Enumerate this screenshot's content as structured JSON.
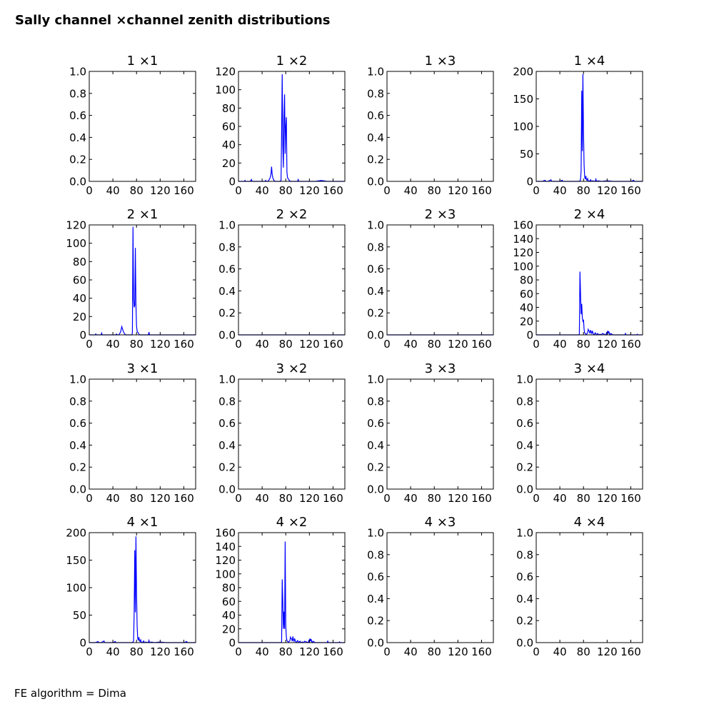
{
  "title": "Sally channel ×channel zenith distributions",
  "footer": "FE algorithm = Dima",
  "colors": {
    "line": "#0000ff",
    "axes": "#000000",
    "background": "#ffffff"
  },
  "chart_data": [
    {
      "type": "line",
      "title": "1 ×1",
      "xlim": [
        0,
        180
      ],
      "ylim": [
        0,
        1.0
      ],
      "xticks": [
        "0",
        "40",
        "80",
        "120",
        "160"
      ],
      "yticks": [
        "0.0",
        "0.2",
        "0.4",
        "0.6",
        "0.8",
        "1.0"
      ],
      "series": []
    },
    {
      "type": "line",
      "title": "1 ×2",
      "xlim": [
        0,
        180
      ],
      "ylim": [
        0,
        120
      ],
      "xticks": [
        "0",
        "40",
        "80",
        "120",
        "160"
      ],
      "yticks": [
        "0",
        "20",
        "40",
        "60",
        "80",
        "100",
        "120"
      ],
      "series": [
        {
          "x": [
            0,
            10,
            11,
            12,
            20,
            22,
            23,
            24,
            30,
            40,
            45,
            46,
            47,
            50,
            52,
            53,
            54,
            55,
            56,
            57,
            58,
            60,
            62,
            66,
            68,
            70,
            72,
            73,
            74,
            75,
            76,
            77,
            78,
            79,
            80,
            81,
            82,
            83,
            84,
            85,
            86,
            88,
            90,
            95,
            100,
            101,
            102,
            110,
            130,
            140,
            150,
            160,
            180
          ],
          "y": [
            0,
            0,
            1,
            0,
            0,
            2,
            0,
            0,
            0,
            0,
            0,
            1,
            0,
            0,
            2,
            3,
            5,
            8,
            16,
            8,
            4,
            1,
            0,
            0,
            0,
            0,
            1,
            53,
            117,
            40,
            15,
            70,
            95,
            30,
            60,
            70,
            10,
            4,
            3,
            2,
            1,
            0,
            0,
            0,
            0,
            2,
            0,
            0,
            0,
            1,
            0,
            0,
            0
          ]
        }
      ]
    },
    {
      "type": "line",
      "title": "1 ×3",
      "xlim": [
        0,
        180
      ],
      "ylim": [
        0,
        1.0
      ],
      "xticks": [
        "0",
        "40",
        "80",
        "120",
        "160"
      ],
      "yticks": [
        "0.0",
        "0.2",
        "0.4",
        "0.6",
        "0.8",
        "1.0"
      ],
      "series": []
    },
    {
      "type": "line",
      "title": "1 ×4",
      "xlim": [
        0,
        180
      ],
      "ylim": [
        0,
        200
      ],
      "xticks": [
        "0",
        "40",
        "80",
        "120",
        "160"
      ],
      "yticks": [
        "0",
        "50",
        "100",
        "150",
        "200"
      ],
      "series": [
        {
          "x": [
            0,
            10,
            15,
            16,
            20,
            25,
            26,
            30,
            40,
            44,
            45,
            50,
            60,
            70,
            72,
            74,
            75,
            76,
            77,
            78,
            79,
            80,
            81,
            82,
            83,
            84,
            85,
            86,
            87,
            88,
            90,
            92,
            93,
            95,
            100,
            101,
            102,
            105,
            110,
            120,
            130,
            140,
            150,
            160,
            165,
            166,
            170,
            180
          ],
          "y": [
            0,
            0,
            2,
            0,
            0,
            3,
            0,
            0,
            0,
            2,
            0,
            0,
            0,
            0,
            0,
            1,
            3,
            20,
            165,
            55,
            195,
            90,
            30,
            8,
            4,
            10,
            3,
            2,
            5,
            1,
            0,
            3,
            0,
            1,
            0,
            4,
            0,
            1,
            0,
            1,
            0,
            0,
            0,
            0,
            2,
            0,
            0,
            0
          ]
        }
      ]
    },
    {
      "type": "line",
      "title": "2 ×1",
      "xlim": [
        0,
        180
      ],
      "ylim": [
        0,
        120
      ],
      "xticks": [
        "0",
        "40",
        "80",
        "120",
        "160"
      ],
      "yticks": [
        "0",
        "20",
        "40",
        "60",
        "80",
        "100",
        "120"
      ],
      "series": [
        {
          "x": [
            0,
            10,
            11,
            12,
            20,
            21,
            22,
            30,
            40,
            45,
            46,
            47,
            50,
            52,
            53,
            54,
            55,
            56,
            57,
            58,
            60,
            62,
            66,
            70,
            72,
            73,
            74,
            75,
            76,
            77,
            78,
            79,
            80,
            81,
            82,
            83,
            84,
            85,
            86,
            88,
            90,
            95,
            100,
            101,
            102,
            110,
            130,
            150,
            180
          ],
          "y": [
            0,
            0,
            1,
            0,
            0,
            2,
            0,
            0,
            0,
            0,
            1,
            0,
            0,
            2,
            3,
            6,
            9,
            7,
            5,
            3,
            1,
            0,
            0,
            0,
            0,
            2,
            118,
            40,
            30,
            32,
            95,
            33,
            10,
            4,
            3,
            2,
            1,
            0,
            0,
            0,
            0,
            0,
            0,
            3,
            0,
            0,
            0,
            0,
            0
          ]
        }
      ]
    },
    {
      "type": "line",
      "title": "2 ×2",
      "xlim": [
        0,
        180
      ],
      "ylim": [
        0,
        1.0
      ],
      "xticks": [
        "0",
        "40",
        "80",
        "120",
        "160"
      ],
      "yticks": [
        "0.0",
        "0.2",
        "0.4",
        "0.6",
        "0.8",
        "1.0"
      ],
      "series": [
        {
          "x": [
            0,
            180
          ],
          "y": [
            0,
            0
          ]
        }
      ]
    },
    {
      "type": "line",
      "title": "2 ×3",
      "xlim": [
        0,
        180
      ],
      "ylim": [
        0,
        1.0
      ],
      "xticks": [
        "0",
        "40",
        "80",
        "120",
        "160"
      ],
      "yticks": [
        "0.0",
        "0.2",
        "0.4",
        "0.6",
        "0.8",
        "1.0"
      ],
      "series": [
        {
          "x": [
            0,
            180
          ],
          "y": [
            0,
            0
          ]
        }
      ]
    },
    {
      "type": "line",
      "title": "2 ×4",
      "xlim": [
        0,
        180
      ],
      "ylim": [
        0,
        160
      ],
      "xticks": [
        "0",
        "40",
        "80",
        "120",
        "160"
      ],
      "yticks": [
        "0",
        "20",
        "40",
        "60",
        "80",
        "100",
        "120",
        "140",
        "160"
      ],
      "series": [
        {
          "x": [
            0,
            50,
            60,
            70,
            72,
            73,
            74,
            75,
            76,
            77,
            78,
            79,
            80,
            81,
            82,
            83,
            84,
            85,
            86,
            87,
            88,
            89,
            90,
            91,
            92,
            93,
            94,
            95,
            96,
            97,
            98,
            100,
            102,
            104,
            106,
            108,
            110,
            112,
            118,
            119,
            120,
            121,
            122,
            123,
            124,
            125,
            126,
            130,
            140,
            150,
            151,
            152,
            160,
            170,
            171,
            172,
            180
          ],
          "y": [
            0,
            0,
            0,
            0,
            0,
            1,
            92,
            60,
            30,
            45,
            25,
            20,
            22,
            8,
            3,
            2,
            1,
            1,
            2,
            3,
            8,
            6,
            5,
            2,
            7,
            4,
            2,
            6,
            3,
            1,
            0,
            3,
            0,
            2,
            0,
            1,
            0,
            2,
            0,
            3,
            1,
            6,
            2,
            5,
            1,
            0,
            2,
            0,
            0,
            0,
            2,
            0,
            0,
            0,
            1,
            0,
            0
          ]
        }
      ]
    },
    {
      "type": "line",
      "title": "3 ×1",
      "xlim": [
        0,
        180
      ],
      "ylim": [
        0,
        1.0
      ],
      "xticks": [
        "0",
        "40",
        "80",
        "120",
        "160"
      ],
      "yticks": [
        "0.0",
        "0.2",
        "0.4",
        "0.6",
        "0.8",
        "1.0"
      ],
      "series": []
    },
    {
      "type": "line",
      "title": "3 ×2",
      "xlim": [
        0,
        180
      ],
      "ylim": [
        0,
        1.0
      ],
      "xticks": [
        "0",
        "40",
        "80",
        "120",
        "160"
      ],
      "yticks": [
        "0.0",
        "0.2",
        "0.4",
        "0.6",
        "0.8",
        "1.0"
      ],
      "series": []
    },
    {
      "type": "line",
      "title": "3 ×3",
      "xlim": [
        0,
        180
      ],
      "ylim": [
        0,
        1.0
      ],
      "xticks": [
        "0",
        "40",
        "80",
        "120",
        "160"
      ],
      "yticks": [
        "0.0",
        "0.2",
        "0.4",
        "0.6",
        "0.8",
        "1.0"
      ],
      "series": []
    },
    {
      "type": "line",
      "title": "3 ×4",
      "xlim": [
        0,
        180
      ],
      "ylim": [
        0,
        1.0
      ],
      "xticks": [
        "0",
        "40",
        "80",
        "120",
        "160"
      ],
      "yticks": [
        "0.0",
        "0.2",
        "0.4",
        "0.6",
        "0.8",
        "1.0"
      ],
      "series": []
    },
    {
      "type": "line",
      "title": "4 ×1",
      "xlim": [
        0,
        180
      ],
      "ylim": [
        0,
        200
      ],
      "xticks": [
        "0",
        "40",
        "80",
        "120",
        "160"
      ],
      "yticks": [
        "0",
        "50",
        "100",
        "150",
        "200"
      ],
      "series": [
        {
          "x": [
            0,
            10,
            15,
            16,
            20,
            25,
            26,
            30,
            40,
            44,
            45,
            50,
            60,
            70,
            72,
            74,
            75,
            76,
            77,
            78,
            79,
            80,
            81,
            82,
            83,
            84,
            85,
            86,
            87,
            88,
            90,
            92,
            93,
            95,
            100,
            101,
            102,
            105,
            110,
            120,
            130,
            140,
            150,
            160,
            165,
            166,
            170,
            180
          ],
          "y": [
            0,
            0,
            2,
            0,
            0,
            3,
            0,
            0,
            0,
            2,
            0,
            0,
            0,
            0,
            0,
            1,
            3,
            55,
            168,
            55,
            193,
            90,
            30,
            8,
            4,
            10,
            3,
            2,
            5,
            1,
            0,
            3,
            0,
            1,
            0,
            4,
            0,
            1,
            0,
            1,
            0,
            0,
            0,
            0,
            2,
            0,
            0,
            0
          ]
        }
      ]
    },
    {
      "type": "line",
      "title": "4 ×2",
      "xlim": [
        0,
        180
      ],
      "ylim": [
        0,
        160
      ],
      "xticks": [
        "0",
        "40",
        "80",
        "120",
        "160"
      ],
      "yticks": [
        "0",
        "20",
        "40",
        "60",
        "80",
        "100",
        "120",
        "140",
        "160"
      ],
      "series": [
        {
          "x": [
            0,
            50,
            60,
            70,
            72,
            73,
            74,
            75,
            76,
            77,
            78,
            79,
            80,
            81,
            82,
            83,
            84,
            85,
            86,
            87,
            88,
            89,
            90,
            91,
            92,
            93,
            94,
            95,
            96,
            97,
            98,
            100,
            102,
            104,
            106,
            108,
            110,
            112,
            118,
            119,
            120,
            121,
            122,
            123,
            124,
            125,
            126,
            130,
            140,
            150,
            151,
            152,
            160,
            170,
            171,
            172,
            180
          ],
          "y": [
            0,
            0,
            0,
            0,
            0,
            1,
            92,
            60,
            20,
            45,
            20,
            147,
            25,
            8,
            3,
            2,
            1,
            1,
            2,
            3,
            8,
            6,
            5,
            2,
            9,
            4,
            2,
            6,
            3,
            1,
            0,
            3,
            0,
            2,
            0,
            1,
            0,
            2,
            0,
            3,
            1,
            6,
            2,
            5,
            1,
            0,
            2,
            0,
            0,
            0,
            2,
            0,
            0,
            0,
            1,
            0,
            0
          ]
        }
      ]
    },
    {
      "type": "line",
      "title": "4 ×3",
      "xlim": [
        0,
        180
      ],
      "ylim": [
        0,
        1.0
      ],
      "xticks": [
        "0",
        "40",
        "80",
        "120",
        "160"
      ],
      "yticks": [
        "0.0",
        "0.2",
        "0.4",
        "0.6",
        "0.8",
        "1.0"
      ],
      "series": []
    },
    {
      "type": "line",
      "title": "4 ×4",
      "xlim": [
        0,
        180
      ],
      "ylim": [
        0,
        1.0
      ],
      "xticks": [
        "0",
        "40",
        "80",
        "120",
        "160"
      ],
      "yticks": [
        "0.0",
        "0.2",
        "0.4",
        "0.6",
        "0.8",
        "1.0"
      ],
      "series": []
    }
  ]
}
